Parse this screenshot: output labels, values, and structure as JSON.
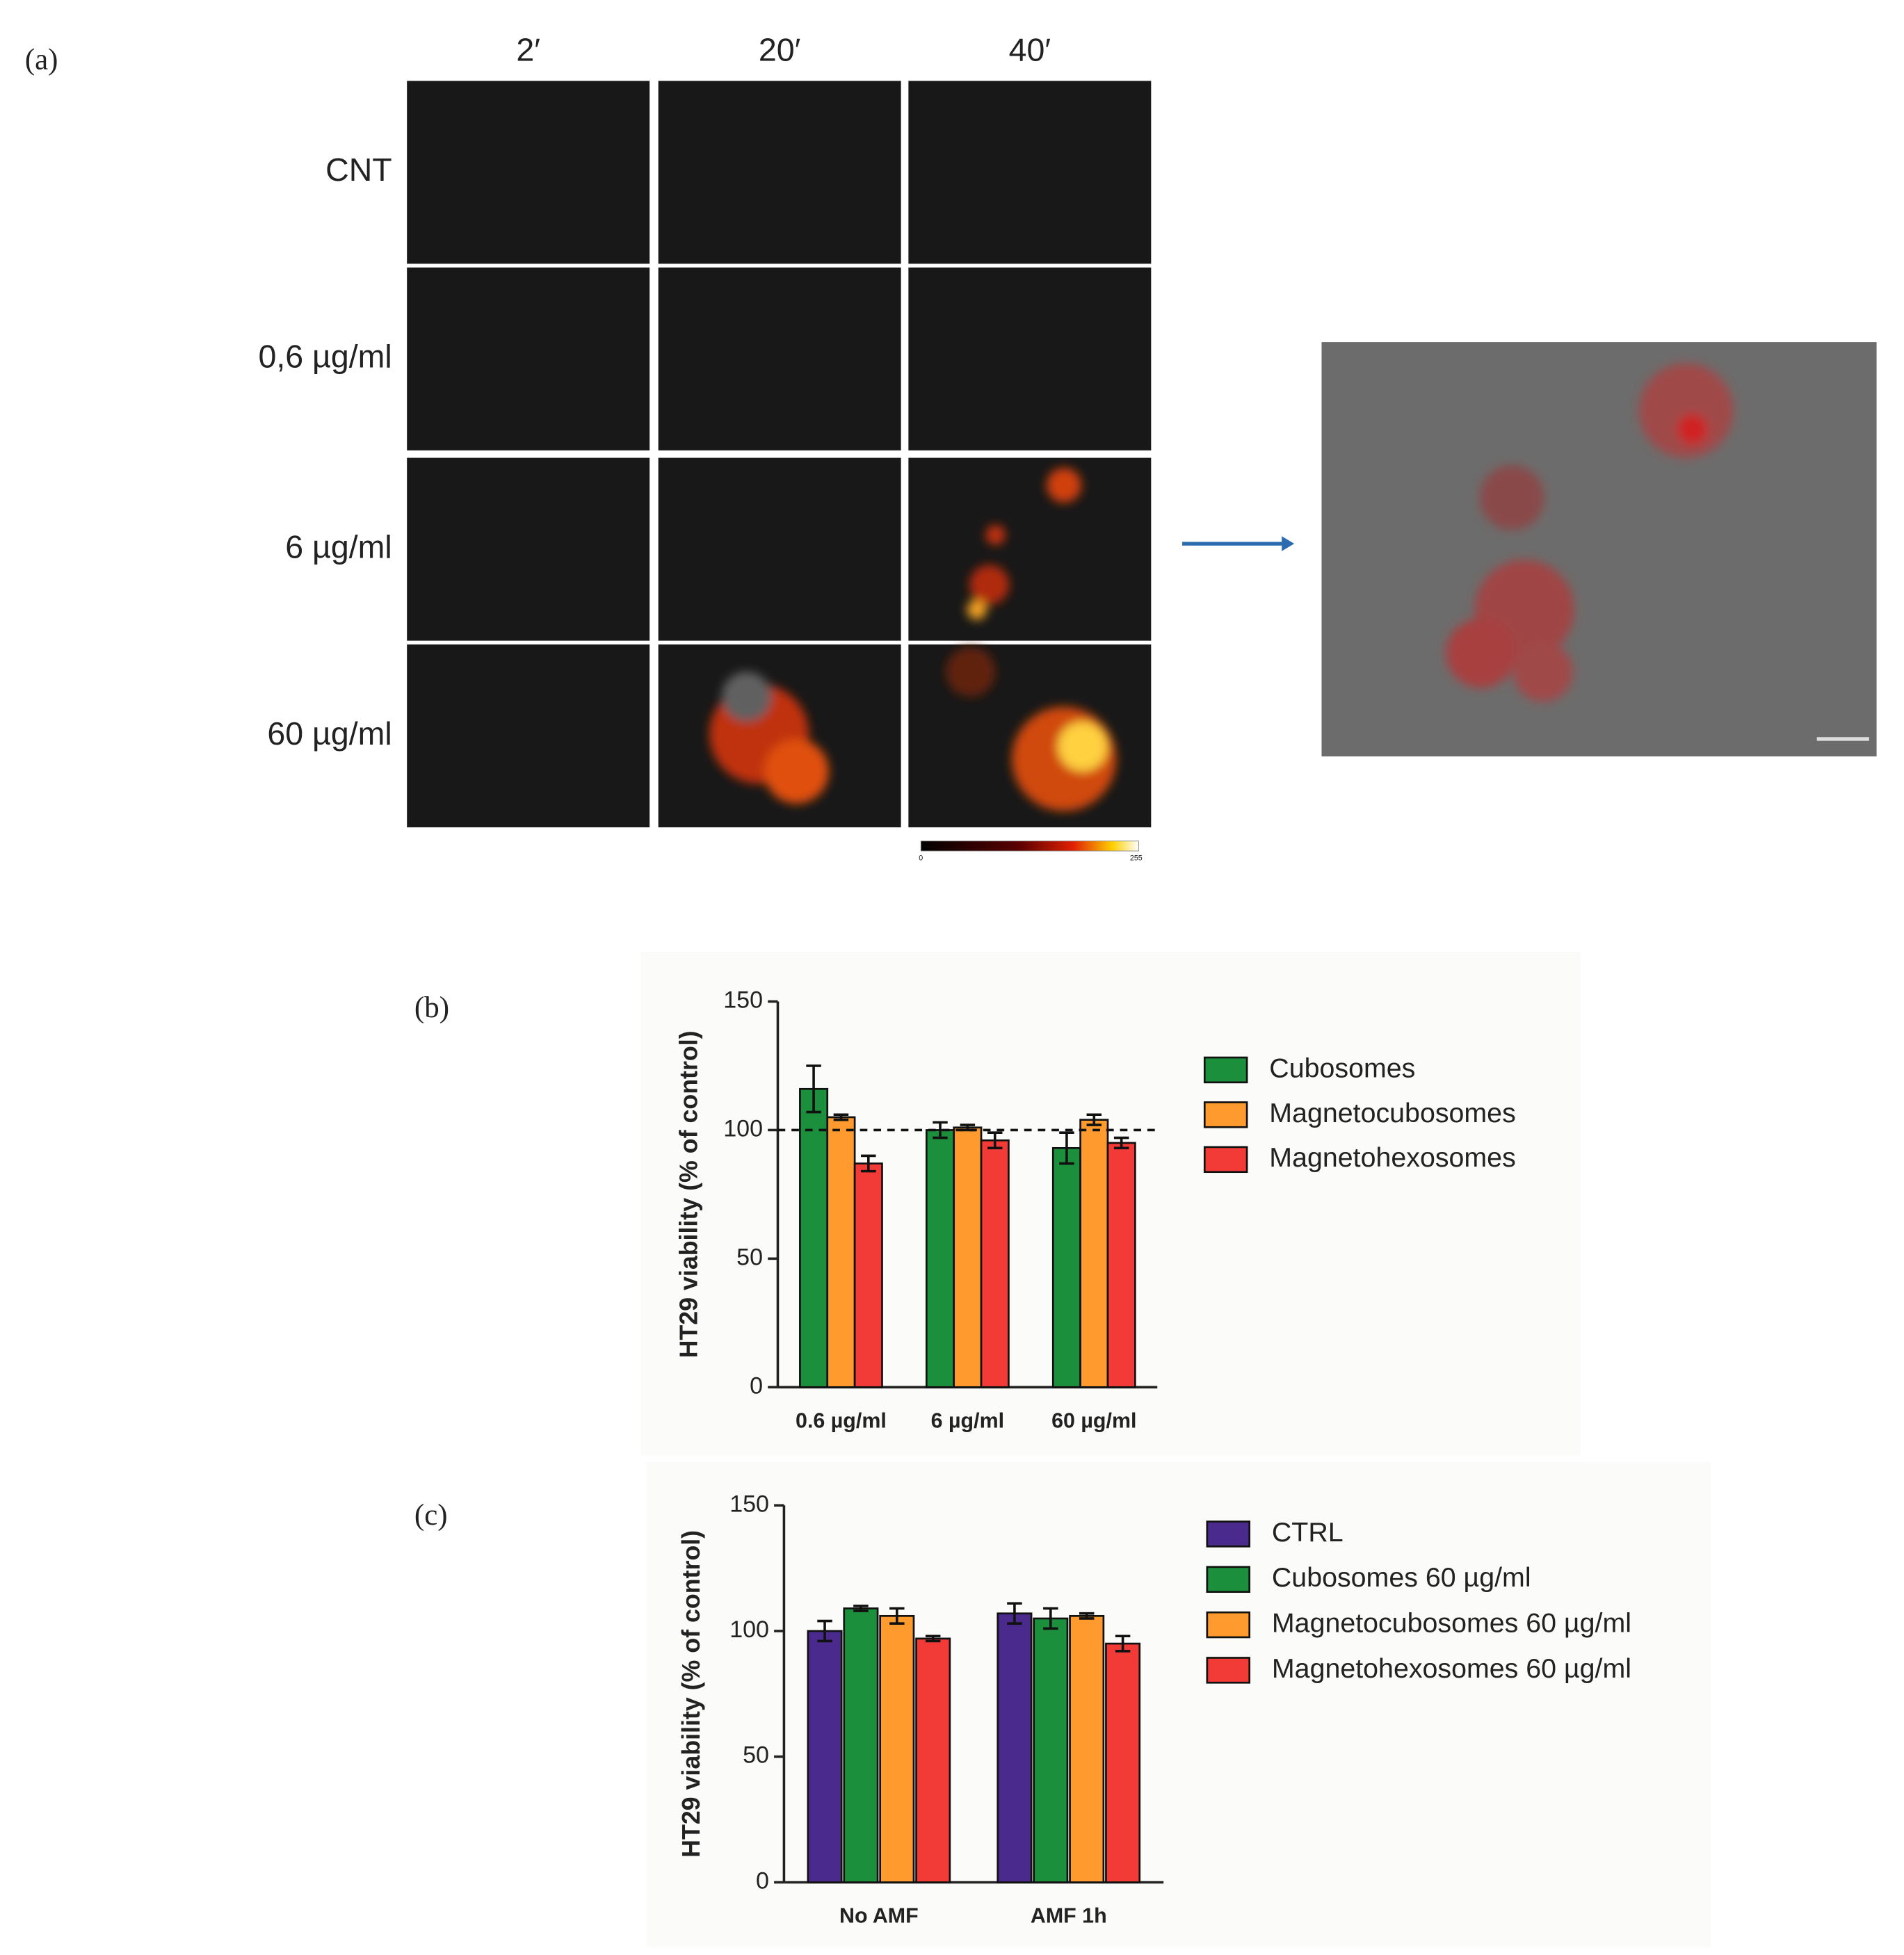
{
  "panel_a": {
    "label": "(a)",
    "columns": [
      "2′",
      "20′",
      "40′"
    ],
    "rows": [
      "CNT",
      "0,6 µg/ml",
      "6 µg/ml",
      "60 µg/ml"
    ],
    "colorbar": [
      "0",
      "255"
    ]
  },
  "chart_data": [
    {
      "type": "bar",
      "label": "(b)",
      "y_label": "HT29 viability (% of control)",
      "categories": [
        "0.6 µg/ml",
        "6 µg/ml",
        "60 µg/ml"
      ],
      "series": [
        {
          "name": "Cubosomes",
          "color": "#1b8f3c",
          "values": [
            116,
            100,
            93
          ],
          "errors": [
            9,
            3,
            6
          ]
        },
        {
          "name": "Magnetocubosomes",
          "color": "#ff9a2e",
          "values": [
            105,
            101,
            104
          ],
          "errors": [
            1,
            1,
            2
          ]
        },
        {
          "name": "Magnetohexosomes",
          "color": "#f23a36",
          "values": [
            87,
            96,
            95
          ],
          "errors": [
            3,
            3,
            2
          ]
        }
      ],
      "ylim": [
        0,
        150
      ],
      "yticks": [
        0,
        50,
        100,
        150
      ],
      "reference_line": 100
    },
    {
      "type": "bar",
      "label": "(c)",
      "y_label": "HT29 viability (% of control)",
      "categories": [
        "No AMF",
        "AMF 1h"
      ],
      "series": [
        {
          "name": "CTRL",
          "color": "#4a2a8c",
          "values": [
            100,
            107
          ],
          "errors": [
            4,
            4
          ]
        },
        {
          "name": "Cubosomes 60 µg/ml",
          "color": "#1b8f3c",
          "values": [
            109,
            105
          ],
          "errors": [
            1,
            4
          ]
        },
        {
          "name": "Magnetocubosomes 60 µg/ml",
          "color": "#ff9a2e",
          "values": [
            106,
            106
          ],
          "errors": [
            3,
            1
          ]
        },
        {
          "name": "Magnetohexosomes 60 µg/ml",
          "color": "#f23a36",
          "values": [
            97,
            95
          ],
          "errors": [
            1,
            3
          ]
        }
      ],
      "ylim": [
        0,
        150
      ],
      "yticks": [
        0,
        50,
        100,
        150
      ]
    }
  ]
}
